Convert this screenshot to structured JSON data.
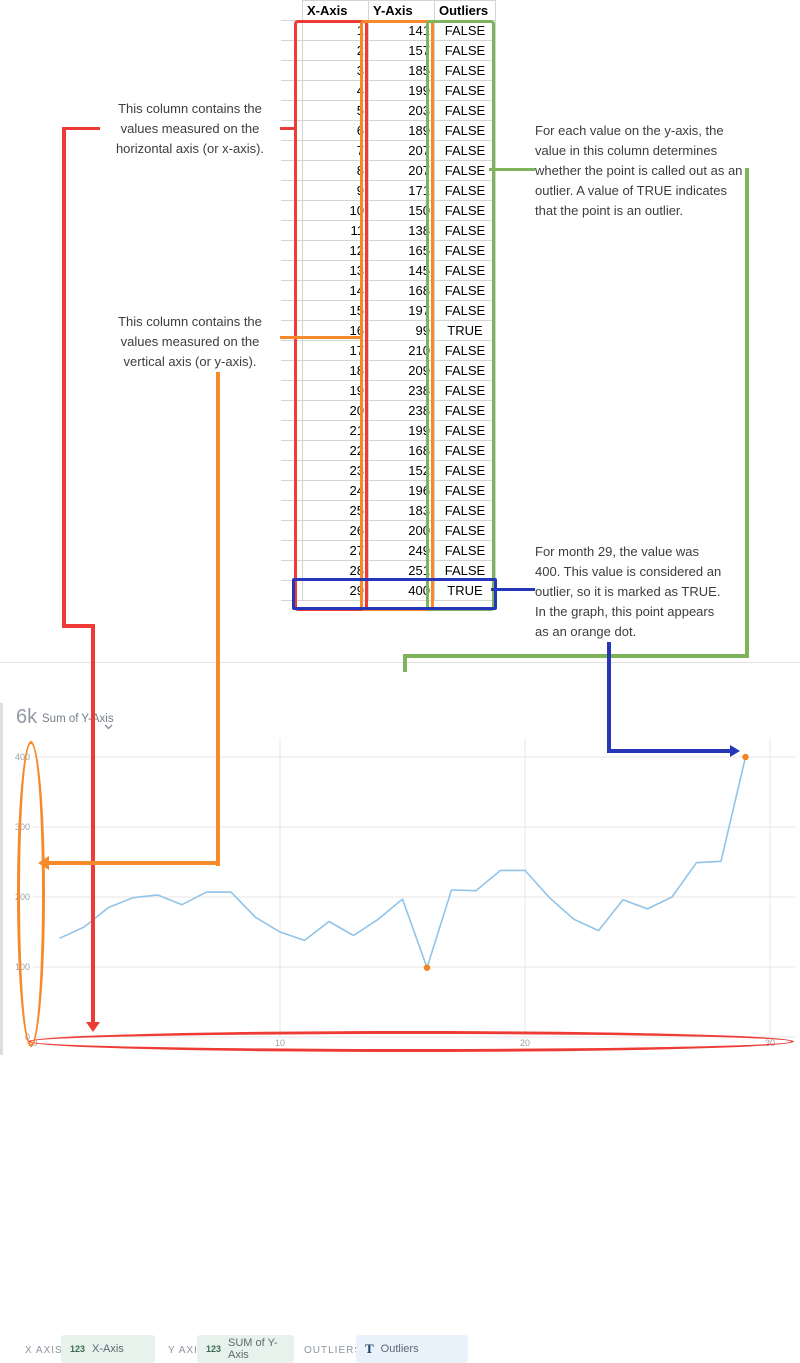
{
  "colors": {
    "red": "#ee3b35",
    "orange": "#f68a2b",
    "green": "#7db35b",
    "blue": "#2537b8",
    "chart_line": "#90c4e9",
    "outlier_dot": "#f5831f",
    "grid": "#e7e7e7",
    "tick_text": "#9aa0a6"
  },
  "table": {
    "headers": [
      "X-Axis",
      "Y-Axis",
      "Outliers"
    ],
    "rows": [
      [
        1,
        141,
        "FALSE"
      ],
      [
        2,
        157,
        "FALSE"
      ],
      [
        3,
        185,
        "FALSE"
      ],
      [
        4,
        199,
        "FALSE"
      ],
      [
        5,
        203,
        "FALSE"
      ],
      [
        6,
        189,
        "FALSE"
      ],
      [
        7,
        207,
        "FALSE"
      ],
      [
        8,
        207,
        "FALSE"
      ],
      [
        9,
        171,
        "FALSE"
      ],
      [
        10,
        150,
        "FALSE"
      ],
      [
        11,
        138,
        "FALSE"
      ],
      [
        12,
        165,
        "FALSE"
      ],
      [
        13,
        145,
        "FALSE"
      ],
      [
        14,
        168,
        "FALSE"
      ],
      [
        15,
        197,
        "FALSE"
      ],
      [
        16,
        99,
        "TRUE"
      ],
      [
        17,
        210,
        "FALSE"
      ],
      [
        18,
        209,
        "FALSE"
      ],
      [
        19,
        238,
        "FALSE"
      ],
      [
        20,
        238,
        "FALSE"
      ],
      [
        21,
        199,
        "FALSE"
      ],
      [
        22,
        168,
        "FALSE"
      ],
      [
        23,
        152,
        "FALSE"
      ],
      [
        24,
        196,
        "FALSE"
      ],
      [
        25,
        183,
        "FALSE"
      ],
      [
        26,
        200,
        "FALSE"
      ],
      [
        27,
        249,
        "FALSE"
      ],
      [
        28,
        251,
        "FALSE"
      ],
      [
        29,
        400,
        "TRUE"
      ]
    ]
  },
  "annotations": {
    "x_column": "This column contains the values measured on the horizontal axis (or x-axis).",
    "y_column": "This column contains the values measured on the vertical axis (or y-axis).",
    "outliers_column": "For each value on the y-axis, the value in this column determines whether the point is called out as an outlier. A value of TRUE indicates that the point is an outlier.",
    "outlier_point": "For month 29, the value was 400. This value is considered an outlier, so it is marked as TRUE. In the graph, this point appears as an orange dot."
  },
  "toolbar": {
    "x_axis_label": "X AXIS",
    "x_axis_icon": "123",
    "x_axis_value": "X-Axis",
    "y_axis_label": "Y AXIS",
    "y_axis_icon": "123",
    "y_axis_value": "SUM of Y-Axis",
    "outliers_label": "OUTLIERS",
    "outliers_icon": "T",
    "outliers_value": "Outliers"
  },
  "chart_header": {
    "value": "6k",
    "metric": "Sum of Y-Axis"
  },
  "chart_data": {
    "type": "line",
    "title": "Sum of Y-Axis",
    "x": [
      1,
      2,
      3,
      4,
      5,
      6,
      7,
      8,
      9,
      10,
      11,
      12,
      13,
      14,
      15,
      16,
      17,
      18,
      19,
      20,
      21,
      22,
      23,
      24,
      25,
      26,
      27,
      28,
      29
    ],
    "series": [
      {
        "name": "Sum of Y-Axis",
        "values": [
          141,
          157,
          185,
          199,
          203,
          189,
          207,
          207,
          171,
          150,
          138,
          165,
          145,
          168,
          197,
          99,
          210,
          209,
          238,
          238,
          199,
          168,
          152,
          196,
          183,
          200,
          249,
          251,
          400
        ]
      }
    ],
    "outlier_x": [
      16,
      29
    ],
    "x_ticks": [
      0,
      10,
      20,
      30
    ],
    "y_ticks": [
      0,
      100,
      200,
      300,
      400
    ],
    "xlim": [
      0,
      30
    ],
    "ylim": [
      0,
      430
    ],
    "grid": true,
    "legend": "none",
    "xlabel": "",
    "ylabel": ""
  }
}
